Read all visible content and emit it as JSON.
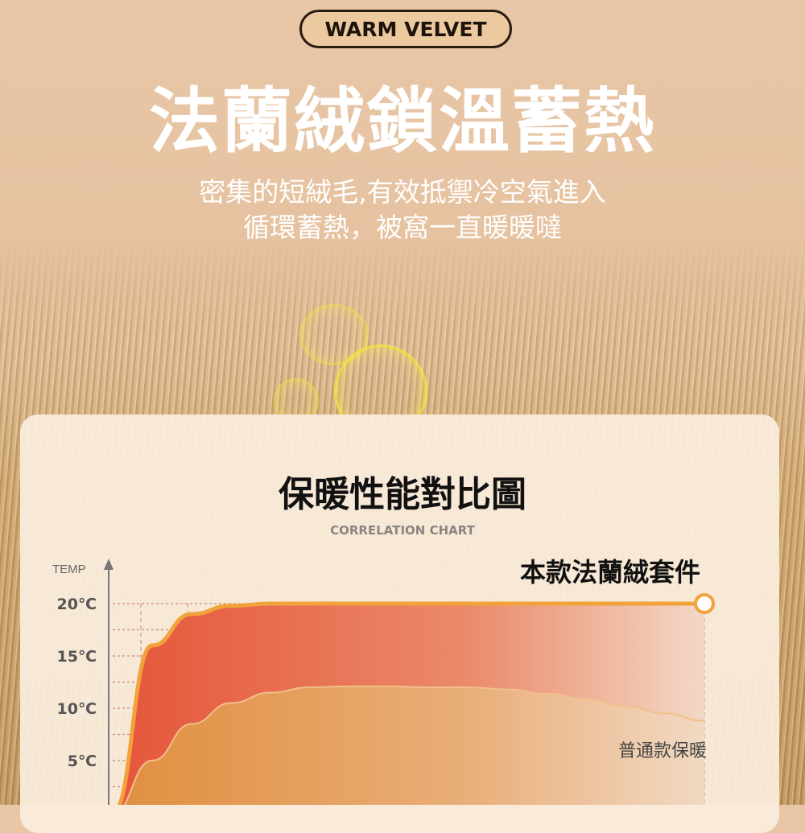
{
  "badge": "WARM VELVET",
  "headline": "法蘭絨鎖溫蓄熱",
  "subline1": "密集的短絨毛,有效抵禦冷空氣進入",
  "subline2": "循環蓄熱，被窩一直暖暖噠",
  "chart_data": {
    "type": "area",
    "title": "保暖性能對比圖",
    "subtitle": "CORRELATION CHART",
    "ylabel": "TEMP",
    "yticks": [
      "20℃",
      "15℃",
      "10℃",
      "5℃"
    ],
    "ytick_values": [
      20,
      15,
      10,
      5
    ],
    "ylim": [
      0,
      20
    ],
    "grid": true,
    "series": [
      {
        "name": "本款法蘭絨套件",
        "color": "#e8623e",
        "line_color": "#f2a23a",
        "values": [
          0,
          16,
          19,
          19.8,
          20,
          20,
          20,
          20,
          20,
          20,
          20,
          20,
          20,
          20,
          20,
          20
        ]
      },
      {
        "name": "普通款保暖",
        "color": "#e59a4e",
        "values": [
          0,
          5,
          8.5,
          10.5,
          11.5,
          12,
          12.1,
          12.1,
          12,
          12,
          11.8,
          11.4,
          10.9,
          10.2,
          9.5,
          8.8
        ]
      }
    ]
  }
}
